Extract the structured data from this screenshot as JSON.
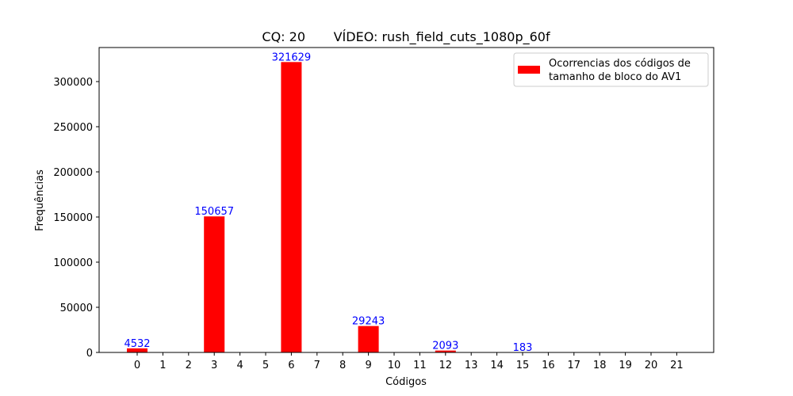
{
  "chart_data": {
    "type": "bar",
    "title": "CQ: 20       VÍDEO: rush_field_cuts_1080p_60f",
    "xlabel": "Códigos",
    "ylabel": "Frequências",
    "categories": [
      "0",
      "1",
      "2",
      "3",
      "4",
      "5",
      "6",
      "7",
      "8",
      "9",
      "10",
      "11",
      "12",
      "13",
      "14",
      "15",
      "16",
      "17",
      "18",
      "19",
      "20",
      "21"
    ],
    "values": [
      4532,
      0,
      0,
      150657,
      0,
      0,
      321629,
      0,
      0,
      29243,
      0,
      0,
      2093,
      0,
      0,
      183,
      0,
      0,
      0,
      0,
      0,
      0
    ],
    "data_labels": [
      "4532",
      "",
      "",
      "150657",
      "",
      "",
      "321629",
      "",
      "",
      "29243",
      "",
      "",
      "2093",
      "",
      "",
      "183",
      "",
      "",
      "",
      "",
      "",
      ""
    ],
    "ylim": [
      0,
      337710
    ],
    "yticks": [
      0,
      50000,
      100000,
      150000,
      200000,
      250000,
      300000
    ],
    "legend": {
      "position": "top-right",
      "lines": [
        "Ocorrencias dos códigos de",
        "tamanho de bloco do AV1"
      ]
    },
    "series": [
      {
        "name": "Ocorrencias dos códigos de tamanho de bloco do AV1",
        "color": "#ff0000"
      }
    ],
    "label_color": "#0000ff",
    "grid": false
  }
}
